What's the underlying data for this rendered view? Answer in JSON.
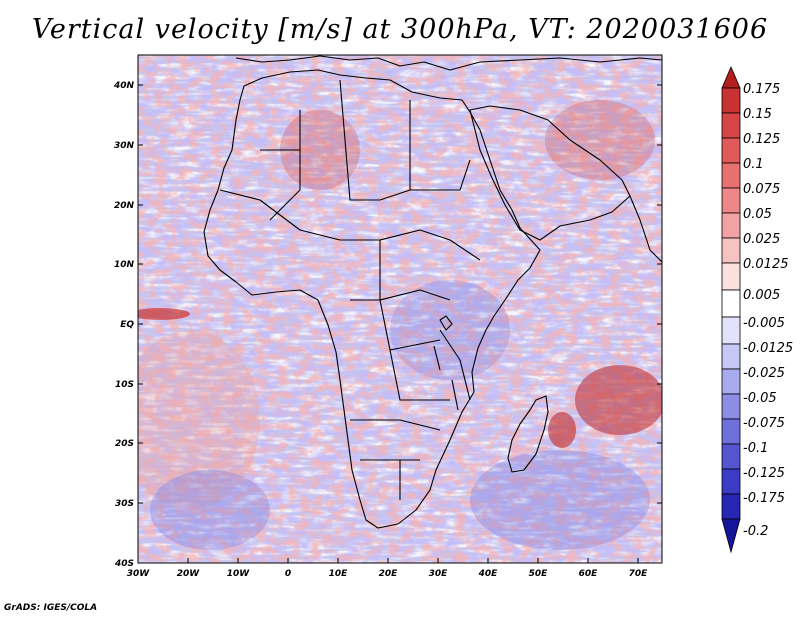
{
  "title": "Vertical velocity [m/s] at 300hPa, VT: 2020031606",
  "credit": "GrADS: IGES/COLA",
  "map": {
    "variable": "Vertical velocity",
    "units": "m/s",
    "level": "300hPa",
    "valid_time": "2020031606",
    "lat_labels": [
      "40N",
      "30N",
      "20N",
      "10N",
      "EQ",
      "10S",
      "20S",
      "30S",
      "40S"
    ],
    "lon_labels": [
      "30W",
      "20W",
      "10W",
      "0",
      "10E",
      "20E",
      "30E",
      "40E",
      "50E",
      "60E",
      "70E"
    ]
  },
  "colorbar": {
    "levels": [
      "0.175",
      "0.15",
      "0.125",
      "0.1",
      "0.075",
      "0.05",
      "0.025",
      "0.0125",
      "0.005",
      "-0.005",
      "-0.0125",
      "-0.025",
      "-0.05",
      "-0.075",
      "-0.1",
      "-0.125",
      "-0.175",
      "-0.2"
    ],
    "colors": [
      "#b41e1e",
      "#c83232",
      "#d74646",
      "#e05a5a",
      "#e87070",
      "#ee8888",
      "#f2a2a2",
      "#f7c2c2",
      "#fbe0e0",
      "#ffffff",
      "#e2e2fb",
      "#c7c7f5",
      "#aaaaee",
      "#8d8de6",
      "#7070dd",
      "#5555d2",
      "#3b3bc5",
      "#2626b3",
      "#15159c"
    ]
  }
}
